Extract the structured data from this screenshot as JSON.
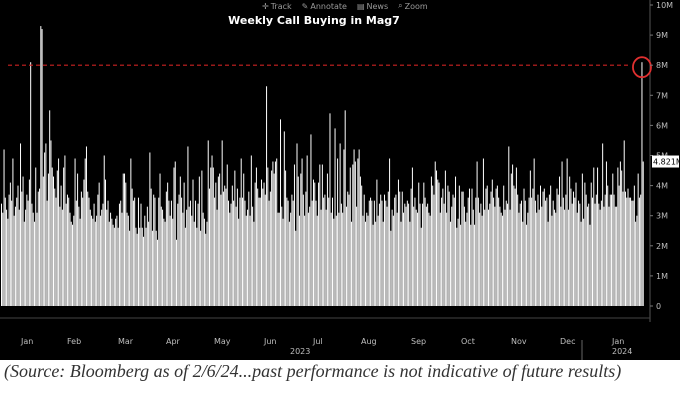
{
  "toolbar": {
    "items": [
      {
        "label": "Track",
        "icon": "crosshair-icon"
      },
      {
        "label": "Annotate",
        "icon": "pencil-icon"
      },
      {
        "label": "News",
        "icon": "newspaper-icon"
      },
      {
        "label": "Zoom",
        "icon": "magnifier-icon"
      }
    ]
  },
  "colors": {
    "background": "#000000",
    "bars": "#ffffff",
    "reference_line": "#cc2222",
    "circle": "#e03030",
    "axis_text": "#bfbfbf"
  },
  "source_note": "(Source: Bloomberg as of 2/6/24...past performance is not indicative of future results)",
  "chart_data": {
    "type": "bar",
    "title": "Weekly Call Buying in Mag7",
    "ylim": [
      0,
      10000000
    ],
    "y_ticks": [
      "0",
      "1M",
      "2M",
      "3M",
      "4M",
      "5M",
      "6M",
      "7M",
      "8M",
      "9M",
      "10M"
    ],
    "y_tick_values": [
      0,
      1000000,
      2000000,
      3000000,
      4000000,
      5000000,
      6000000,
      7000000,
      8000000,
      9000000,
      10000000
    ],
    "x_month_labels": [
      "Jan",
      "Feb",
      "Mar",
      "Apr",
      "May",
      "Jun",
      "Jul",
      "Aug",
      "Sep",
      "Oct",
      "Nov",
      "Dec",
      "Jan"
    ],
    "x_year_labels": [
      "2023",
      "2024"
    ],
    "last_value_label": "4.821M",
    "reference_line_value": 8000000,
    "grid": false,
    "values": [
      3.4,
      3.1,
      5.2,
      3.6,
      3.2,
      2.9,
      3.7,
      4.1,
      3.5,
      4.9,
      3.0,
      3.3,
      3.6,
      4.0,
      3.2,
      5.4,
      3.8,
      4.3,
      2.8,
      3.2,
      3.7,
      3.5,
      4.2,
      8.1,
      3.4,
      3.1,
      2.8,
      4.6,
      3.1,
      3.8,
      3.9,
      9.3,
      9.2,
      4.3,
      5.1,
      5.4,
      3.5,
      4.4,
      6.5,
      5.5,
      4.6,
      4.3,
      3.9,
      3.6,
      4.5,
      4.9,
      3.3,
      4.0,
      3.2,
      4.6,
      5.0,
      3.4,
      3.7,
      3.6,
      3.1,
      2.8,
      2.7,
      3.0,
      4.9,
      3.5,
      4.4,
      3.3,
      2.9,
      3.8,
      3.6,
      4.2,
      4.9,
      5.3,
      3.8,
      3.6,
      3.2,
      3.0,
      2.9,
      3.4,
      2.8,
      3.0,
      3.7,
      4.1,
      3.0,
      3.2,
      3.4,
      5.0,
      4.2,
      3.2,
      3.5,
      2.8,
      3.1,
      2.9,
      2.7,
      2.6,
      2.9,
      3.0,
      2.6,
      3.4,
      3.5,
      3.1,
      4.4,
      4.4,
      4.1,
      3.1,
      3.0,
      2.5,
      4.9,
      3.9,
      3.5,
      3.6,
      2.6,
      2.4,
      3.6,
      2.6,
      3.4,
      2.6,
      2.3,
      3.0,
      2.6,
      3.3,
      2.8,
      5.1,
      3.9,
      2.5,
      3.7,
      3.6,
      2.5,
      2.2,
      3.6,
      4.4,
      3.3,
      3.2,
      2.9,
      2.8,
      3.8,
      4.1,
      3.5,
      3.0,
      3.5,
      2.9,
      4.6,
      4.8,
      2.2,
      3.4,
      3.7,
      4.3,
      3.6,
      3.1,
      4.1,
      2.6,
      3.2,
      5.3,
      3.3,
      3.5,
      3.0,
      4.2,
      2.8,
      3.5,
      2.6,
      3.4,
      4.3,
      2.5,
      4.5,
      3.1,
      2.9,
      2.4,
      2.8,
      5.5,
      3.9,
      4.6,
      5.0,
      4.6,
      3.6,
      4.1,
      3.2,
      4.3,
      4.4,
      3.7,
      5.5,
      3.8,
      4.0,
      3.9,
      4.7,
      3.5,
      3.1,
      3.4,
      4.0,
      3.5,
      4.5,
      3.3,
      3.9,
      2.9,
      3.6,
      4.9,
      3.6,
      4.4,
      3.5,
      3.0,
      3.2,
      3.8,
      3.0,
      5.0,
      3.3,
      2.8,
      4.1,
      4.6,
      3.9,
      3.6,
      3.6,
      4.2,
      3.9,
      4.1,
      3.7,
      7.3,
      4.6,
      3.5,
      3.8,
      4.5,
      4.8,
      4.4,
      4.8,
      4.9,
      3.1,
      3.1,
      6.2,
      3.3,
      2.9,
      5.8,
      4.5,
      3.6,
      3.5,
      2.8,
      3.1,
      3.7,
      3.5,
      4.7,
      2.5,
      5.4,
      4.3,
      3.0,
      4.4,
      4.9,
      3.7,
      3.0,
      3.8,
      5.0,
      3.1,
      3.3,
      5.7,
      3.5,
      4.2,
      4.1,
      3.5,
      3.0,
      4.1,
      4.7,
      3.2,
      4.7,
      3.6,
      3.7,
      3.2,
      4.4,
      3.6,
      6.4,
      3.1,
      3.6,
      2.9,
      5.9,
      3.0,
      4.9,
      3.1,
      5.4,
      3.4,
      3.1,
      5.2,
      6.5,
      3.3,
      3.8,
      3.7,
      4.6,
      2.8,
      4.7,
      5.2,
      4.8,
      3.3,
      4.9,
      5.2,
      4.3,
      4.0,
      3.0,
      3.7,
      2.8,
      3.1,
      3.0,
      3.5,
      3.6,
      3.5,
      2.7,
      3.5,
      2.8,
      4.2,
      3.0,
      3.4,
      3.7,
      3.5,
      2.8,
      3.7,
      3.5,
      3.3,
      3.8,
      4.9,
      2.5,
      3.2,
      3.0,
      3.6,
      3.7,
      3.1,
      4.2,
      3.8,
      2.8,
      3.8,
      3.1,
      3.4,
      3.3,
      3.5,
      3.4,
      2.8,
      3.9,
      4.6,
      3.3,
      3.6,
      3.2,
      3.1,
      4.1,
      3.4,
      2.6,
      3.4,
      4.1,
      3.6,
      3.3,
      3.4,
      3.1,
      3.0,
      4.3,
      4.0,
      3.7,
      4.8,
      4.5,
      4.2,
      4.1,
      3.1,
      3.6,
      3.9,
      3.4,
      4.5,
      3.1,
      4.0,
      3.8,
      2.8,
      3.3,
      3.7,
      3.6,
      4.3,
      2.6,
      2.9,
      4.0,
      2.7,
      3.8,
      3.8,
      3.3,
      2.8,
      3.1,
      3.6,
      3.9,
      2.7,
      3.9,
      3.2,
      2.7,
      3.6,
      4.8,
      3.6,
      3.1,
      3.4,
      3.0,
      4.9,
      3.2,
      3.9,
      4.0,
      3.2,
      3.4,
      3.8,
      4.2,
      3.6,
      3.3,
      3.9,
      4.0,
      3.6,
      3.3,
      3.1,
      3.0,
      4.0,
      3.2,
      3.5,
      3.4,
      5.3,
      3.2,
      4.4,
      4.7,
      4.0,
      3.9,
      4.6,
      3.7,
      3.1,
      3.4,
      3.5,
      2.8,
      3.9,
      3.5,
      2.7,
      3.1,
      3.6,
      4.5,
      3.6,
      3.9,
      4.9,
      3.5,
      3.1,
      3.7,
      3.2,
      4.0,
      3.3,
      3.8,
      3.9,
      3.5,
      3.6,
      2.8,
      3.7,
      4.0,
      3.0,
      3.5,
      3.2,
      3.1,
      3.9,
      3.7,
      4.3,
      3.3,
      4.8,
      3.6,
      3.2,
      3.7,
      4.9,
      3.2,
      4.3,
      3.9,
      3.4,
      3.8,
      3.6,
      4.1,
      3.1,
      3.5,
      3.4,
      2.8,
      4.4,
      2.9,
      4.1,
      3.7,
      3.3,
      3.4,
      2.7,
      4.1,
      3.6,
      4.6,
      3.4,
      3.7,
      4.6,
      3.4,
      3.2,
      3.5,
      5.4,
      3.3,
      3.7,
      4.8,
      4.0,
      3.3,
      3.7,
      3.7,
      4.4,
      3.7,
      3.3,
      3.3,
      4.6,
      4.0,
      4.8,
      4.5,
      3.8,
      5.5,
      3.8,
      3.6,
      3.9,
      3.6,
      3.6,
      3.5,
      3.5,
      4.0,
      2.8,
      3.0,
      4.4,
      3.6,
      3.7,
      8.1,
      4.8
    ]
  }
}
